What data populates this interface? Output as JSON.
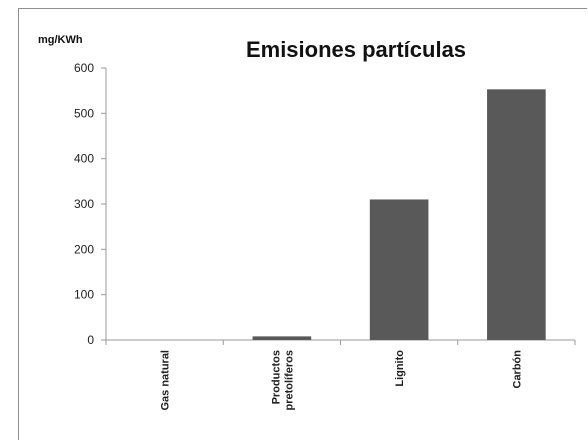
{
  "colors": {
    "bar": "#595959",
    "axis": "#9a9a9a",
    "frame": "#8f8f8f",
    "text": "#111111"
  },
  "chart_data": {
    "type": "bar",
    "title": "Emisiones partículas",
    "ylabel": "mg/KWh",
    "xlabel": "",
    "categories": [
      [
        "Gas natural"
      ],
      [
        "Productos",
        "pretolíferos"
      ],
      [
        "Lignito"
      ],
      [
        "Carbón"
      ]
    ],
    "values": [
      0,
      8,
      310,
      553
    ],
    "ylim": [
      0,
      600
    ],
    "yticks": [
      "0",
      "100",
      "200",
      "300",
      "400",
      "500",
      "600"
    ],
    "grid": false,
    "legend": "none"
  }
}
